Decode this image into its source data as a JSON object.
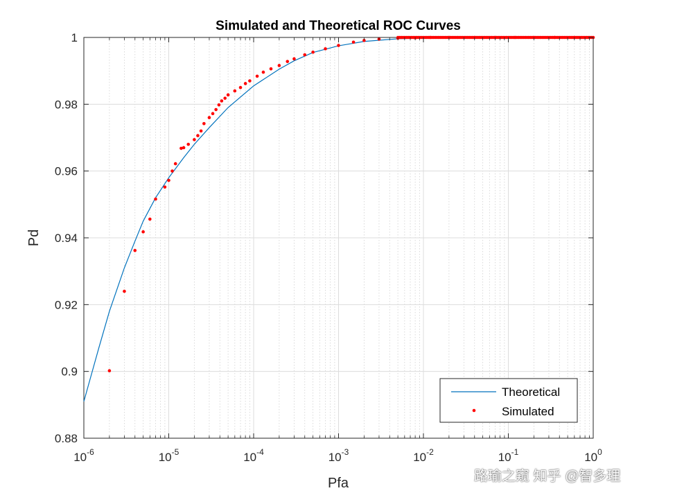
{
  "chart_data": {
    "type": "line+scatter",
    "title": "Simulated and Theoretical ROC Curves",
    "xlabel": "Pfa",
    "ylabel": "Pd",
    "xscale": "log",
    "xlim": [
      1e-06,
      1
    ],
    "ylim": [
      0.88,
      1.0
    ],
    "grid": true,
    "x_ticks": [
      {
        "base": "10",
        "exp": "-6"
      },
      {
        "base": "10",
        "exp": "-5"
      },
      {
        "base": "10",
        "exp": "-4"
      },
      {
        "base": "10",
        "exp": "-3"
      },
      {
        "base": "10",
        "exp": "-2"
      },
      {
        "base": "10",
        "exp": "-1"
      },
      {
        "base": "10",
        "exp": "0"
      }
    ],
    "y_ticks": [
      "0.88",
      "0.9",
      "0.92",
      "0.94",
      "0.96",
      "0.98",
      "1"
    ],
    "y_tick_values": [
      0.88,
      0.9,
      0.92,
      0.94,
      0.96,
      0.98,
      1.0
    ],
    "legend_position": "bottom-right",
    "series": [
      {
        "name": "Theoretical",
        "style": "line",
        "color": "#0072BD",
        "x": [
          1e-06,
          1.5e-06,
          2e-06,
          3e-06,
          4e-06,
          5e-06,
          7e-06,
          1e-05,
          1.5e-05,
          2e-05,
          3e-05,
          5e-05,
          0.0001,
          0.0002,
          0.0003,
          0.0005,
          0.001,
          0.002,
          0.005,
          0.01,
          0.02,
          0.05,
          0.1,
          0.2,
          0.5,
          1.0
        ],
        "y": [
          0.891,
          0.907,
          0.918,
          0.931,
          0.939,
          0.945,
          0.952,
          0.958,
          0.964,
          0.968,
          0.973,
          0.979,
          0.9855,
          0.9905,
          0.993,
          0.9955,
          0.9975,
          0.9988,
          0.9996,
          0.9998,
          0.99995,
          1.0,
          1.0,
          1.0,
          1.0,
          1.0
        ]
      },
      {
        "name": "Simulated",
        "style": "markers",
        "color": "#FF0000",
        "x": [
          2e-06,
          3e-06,
          4e-06,
          5e-06,
          6e-06,
          7e-06,
          9e-06,
          1e-05,
          1.1e-05,
          1.2e-05,
          1.4e-05,
          1.5e-05,
          1.7e-05,
          2e-05,
          2.2e-05,
          2.4e-05,
          2.6e-05,
          3e-05,
          3.3e-05,
          3.6e-05,
          3.9e-05,
          4.2e-05,
          4.6e-05,
          5e-05,
          6e-05,
          7e-05,
          8e-05,
          9e-05,
          0.00011,
          0.00013,
          0.00016,
          0.0002,
          0.00025,
          0.0003,
          0.0004,
          0.0005,
          0.0007,
          0.001,
          0.0015,
          0.002,
          0.003,
          0.005,
          0.008,
          0.012,
          0.02,
          0.04,
          0.07,
          0.12,
          0.2,
          0.35,
          0.6,
          1.0
        ],
        "y": [
          0.9002,
          0.924,
          0.9362,
          0.9418,
          0.9456,
          0.9516,
          0.9552,
          0.9572,
          0.96,
          0.9622,
          0.9668,
          0.967,
          0.968,
          0.9694,
          0.9706,
          0.972,
          0.9742,
          0.976,
          0.9772,
          0.9784,
          0.9798,
          0.981,
          0.9818,
          0.9828,
          0.984,
          0.985,
          0.9862,
          0.987,
          0.9884,
          0.9896,
          0.9906,
          0.9916,
          0.9928,
          0.9936,
          0.9948,
          0.9956,
          0.9966,
          0.9976,
          0.9986,
          0.9991,
          0.9995,
          0.9998,
          0.9999,
          1.0,
          1.0,
          1.0,
          1.0,
          1.0,
          1.0,
          1.0,
          1.0,
          1.0
        ]
      }
    ]
  },
  "watermark": {
    "text": "路瑜之窥  知乎 @智多理",
    "icon": "wechat-icon"
  }
}
